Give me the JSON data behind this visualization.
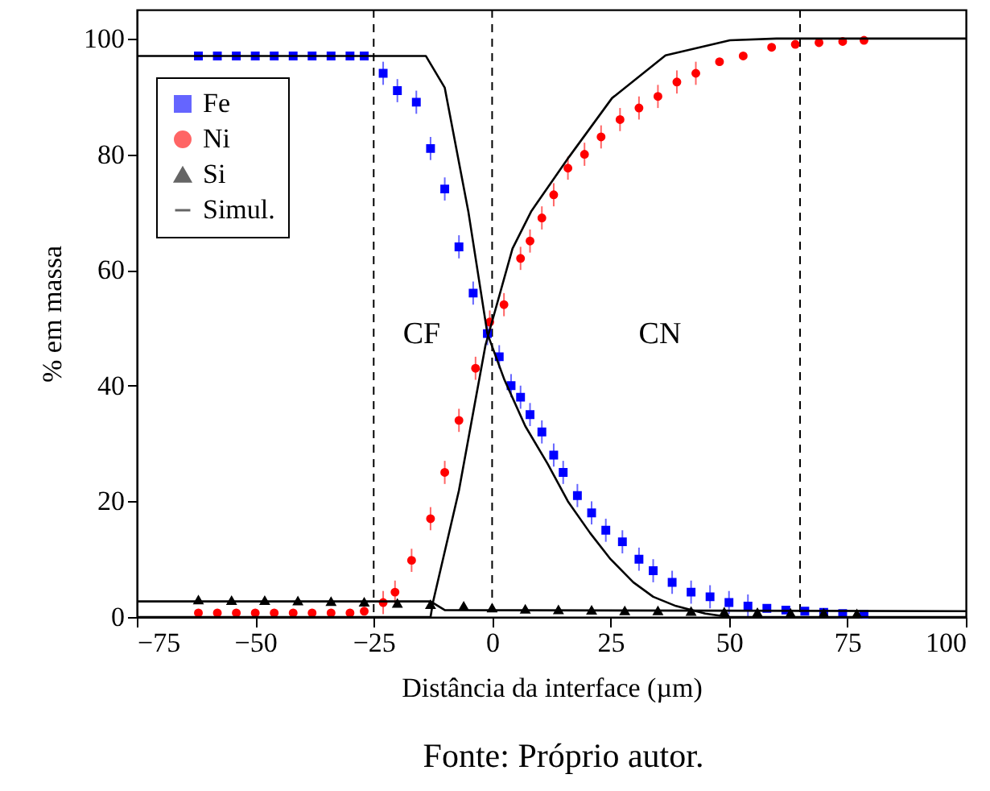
{
  "chart_data": {
    "type": "scatter",
    "xlabel": "Distância da interface (µm)",
    "ylabel": "% em massa",
    "xlim": [
      -75,
      100
    ],
    "xticks": [
      -75,
      -50,
      -25,
      0,
      25,
      50,
      75,
      100
    ],
    "ylim": [
      0,
      105
    ],
    "yticks": [
      0,
      20,
      40,
      60,
      80,
      100
    ],
    "grid": false,
    "legend": "top left",
    "series": [
      {
        "name": "Fe",
        "marker": "square",
        "color": "#0000ff",
        "x": [
          -62,
          -58,
          -54,
          -50,
          -46,
          -42,
          -38,
          -34,
          -30,
          -27,
          -23,
          -20,
          -16,
          -13,
          -10,
          -7,
          -4,
          -1,
          1.5,
          4,
          6,
          8,
          10.5,
          13,
          15,
          18,
          21,
          24,
          27.5,
          31,
          34,
          38,
          42,
          46,
          50,
          54,
          58,
          62,
          66,
          70,
          74,
          78.5
        ],
        "values": [
          97,
          97,
          97,
          97,
          97,
          97,
          97,
          97,
          97,
          97,
          94,
          91,
          89,
          81,
          74,
          64,
          56,
          49,
          45,
          40,
          38,
          35,
          32,
          28,
          25,
          21,
          18,
          15,
          13,
          10,
          8,
          6,
          4.3,
          3.5,
          2.5,
          1.9,
          1.5,
          1.2,
          1,
          0.8,
          0.6,
          0.5
        ],
        "errors": [
          null,
          null,
          null,
          null,
          null,
          null,
          null,
          null,
          null,
          null,
          2,
          2,
          2,
          2,
          2,
          2,
          2,
          2,
          2,
          2,
          2,
          2,
          2,
          2,
          2,
          2,
          2,
          2,
          2,
          2,
          2,
          2,
          2,
          2,
          2,
          2,
          null,
          null,
          null,
          null,
          null,
          null
        ]
      },
      {
        "name": "Ni",
        "marker": "circle",
        "color": "#ff0000",
        "x": [
          -62,
          -58,
          -54,
          -50,
          -46,
          -42,
          -38,
          -34,
          -30,
          -27,
          -23,
          -20.5,
          -17,
          -13,
          -10,
          -7,
          -3.5,
          -0.5,
          2.5,
          6,
          8,
          10.5,
          13,
          16,
          19.5,
          23,
          27,
          31,
          35,
          39,
          43,
          48,
          53,
          59,
          64,
          69,
          74,
          78.5
        ],
        "values": [
          0.7,
          0.7,
          0.7,
          0.7,
          0.7,
          0.7,
          0.7,
          0.7,
          0.7,
          1,
          2.5,
          4.3,
          9.8,
          17,
          25,
          34,
          43,
          51,
          54,
          62,
          65,
          69,
          73,
          77.6,
          80,
          83,
          86,
          88,
          90,
          92.5,
          94,
          96,
          97,
          98.5,
          99,
          99.3,
          99.5,
          99.7
        ],
        "errors": [
          null,
          null,
          null,
          null,
          null,
          null,
          null,
          null,
          null,
          null,
          2,
          2,
          2,
          2,
          2,
          2,
          2,
          2,
          2,
          2,
          2,
          2,
          2,
          2,
          2,
          2,
          2,
          2,
          2,
          2,
          2,
          null,
          null,
          null,
          null,
          null,
          null,
          null
        ]
      },
      {
        "name": "Si",
        "marker": "triangle",
        "color": "#000000",
        "x": [
          -62,
          -55,
          -48,
          -41,
          -34,
          -27,
          -20,
          -13,
          -6,
          0,
          7,
          14,
          21,
          28,
          35,
          42,
          49,
          56,
          63,
          70,
          77
        ],
        "values": [
          2.9,
          2.8,
          2.8,
          2.7,
          2.6,
          2.5,
          2.3,
          2.1,
          1.8,
          1.5,
          1.3,
          1.2,
          1.1,
          1,
          1,
          0.9,
          0.8,
          0.7,
          0.6,
          0.6,
          0.5
        ]
      },
      {
        "name": "Simul.",
        "type": "line",
        "line_style": "solid",
        "color": "#000000",
        "x": [
          -75,
          -14,
          -10,
          -5,
          -1,
          2.6,
          7,
          11.7,
          16,
          20.7,
          25,
          29.8,
          34,
          38.8,
          45,
          50,
          100
        ],
        "values": [
          97,
          97,
          91.5,
          70,
          49,
          41,
          33,
          26.5,
          20,
          14.5,
          10,
          6,
          3.5,
          1.9,
          0.6,
          0,
          0
        ]
      },
      {
        "type": "line",
        "line_style": "solid",
        "color": "#000000",
        "x": [
          -75,
          -13,
          -12.5,
          -7,
          -1.4,
          4.3,
          8.3,
          16.2,
          25.3,
          36.6,
          50.2,
          60,
          100
        ],
        "values": [
          0,
          0,
          2.5,
          21.9,
          47,
          63.7,
          70.2,
          79.5,
          89.7,
          97.1,
          99.7,
          100,
          100
        ]
      },
      {
        "type": "line",
        "line_style": "solid",
        "color": "#000000",
        "x": [
          -75,
          -13,
          -10,
          100
        ],
        "values": [
          2.7,
          2.7,
          1.2,
          1
        ]
      }
    ],
    "ref_lines": [
      {
        "axis": "x",
        "value": -25,
        "line_style": "dashed"
      },
      {
        "axis": "x",
        "value": 0,
        "line_style": "dashed"
      },
      {
        "axis": "x",
        "value": 65,
        "line_style": "dashed"
      }
    ],
    "annotations": [
      "CF",
      "CN",
      "Fonte: Próprio autor."
    ]
  }
}
